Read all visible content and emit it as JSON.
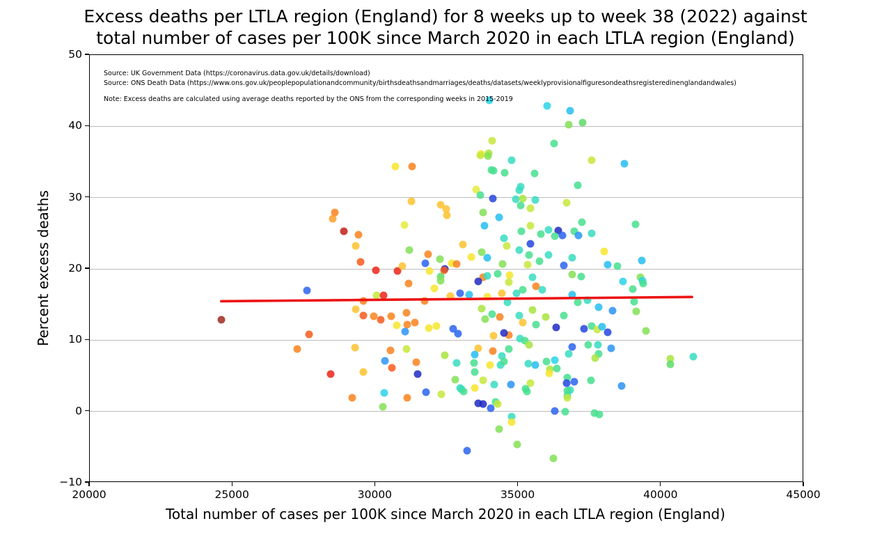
{
  "figure": {
    "title_line1": "Excess deaths per LTLA region (England) for 8 weeks up to week 38 (2022) against",
    "title_line2": "total number of cases per 100K since March 2020 in each LTLA region (England)",
    "source_line1": "Source: UK Government Data (https://coronavirus.data.gov.uk/details/download)",
    "source_line2": "Source: ONS Death Data (https://www.ons.gov.uk/peoplepopulationandcommunity/birthsdeathsandmarriages/deaths/datasets/weeklyprovisionalfiguresondeathsregisteredinenglandandwales)",
    "note": "Note: Excess deaths are calculated using average deaths reported by the ONS from the corresponding weeks in 2015-2019"
  },
  "chart_data": {
    "type": "scatter",
    "title": "Excess deaths per LTLA region (England) for 8 weeks up to week 38 (2022) against total number of cases per 100K since March 2020 in each LTLA region (England)",
    "xlabel": "Total number of cases per 100K since March 2020 in each LTLA region (England)",
    "ylabel": "Percent excess deaths",
    "xlim": [
      20000,
      45000
    ],
    "ylim": [
      -10,
      50
    ],
    "x_ticks": [
      20000,
      25000,
      30000,
      35000,
      40000,
      45000
    ],
    "y_ticks": [
      -10,
      0,
      10,
      20,
      30,
      40,
      50
    ],
    "grid": "horizontal",
    "grid_color": "#bcbcbc",
    "legend": "none",
    "trend_line": {
      "x": [
        24600,
        41130
      ],
      "y": [
        15.35,
        15.95
      ],
      "color": "#ec1313"
    },
    "point_colors": {
      "darkred": "#9f2b1e",
      "firebrick": "#c41f1a",
      "red": "#ee2419",
      "orangered": "#f75a1c",
      "orange": "#f9831d",
      "lightorange": "#fda029",
      "gold": "#fdc22e",
      "yellow": "#f7e52b",
      "limeyellow": "#e5ec3c",
      "greenyellow": "#c5e83b",
      "yellowgreen": "#a8e43e",
      "lightgreen": "#83e056",
      "green": "#5eda68",
      "springgreen": "#46df8e",
      "turquoise": "#37dcc1",
      "cyan": "#29d3e7",
      "deepskyblue": "#26bdf1",
      "dodgerblue": "#2b94f5",
      "blue": "#2c63ee",
      "royalblue": "#2447de",
      "navy": "#1e2ac2"
    },
    "points": [
      [
        30690,
        34.4,
        "yellow"
      ],
      [
        31275,
        34.4,
        "orange"
      ],
      [
        28575,
        27.9,
        "orange"
      ],
      [
        28500,
        27.0,
        "lightorange"
      ],
      [
        28900,
        25.3,
        "firebrick"
      ],
      [
        29415,
        24.8,
        "orange"
      ],
      [
        29310,
        23.2,
        "gold"
      ],
      [
        29480,
        21.0,
        "orangered"
      ],
      [
        31250,
        29.5,
        "gold"
      ],
      [
        31005,
        26.2,
        "limeyellow"
      ],
      [
        31185,
        22.6,
        "lightgreen"
      ],
      [
        31835,
        22.1,
        "orange"
      ],
      [
        32250,
        21.4,
        "lightgreen"
      ],
      [
        31745,
        20.8,
        "blue"
      ],
      [
        32430,
        20.0,
        "navy"
      ],
      [
        32410,
        19.8,
        "orangered"
      ],
      [
        32670,
        20.8,
        "yellow"
      ],
      [
        32850,
        20.7,
        "orange"
      ],
      [
        30015,
        19.8,
        "red"
      ],
      [
        30780,
        19.7,
        "red"
      ],
      [
        30940,
        20.4,
        "gold"
      ],
      [
        31885,
        19.7,
        "yellow"
      ],
      [
        32290,
        18.9,
        "green"
      ],
      [
        32280,
        29.0,
        "gold"
      ],
      [
        32475,
        28.4,
        "gold"
      ],
      [
        32500,
        27.5,
        "gold"
      ],
      [
        33990,
        43.6,
        "cyan"
      ],
      [
        36000,
        42.9,
        "cyan"
      ],
      [
        36820,
        42.2,
        "deepskyblue"
      ],
      [
        36775,
        40.2,
        "lightgreen"
      ],
      [
        37255,
        40.5,
        "green"
      ],
      [
        34095,
        38.0,
        "greenyellow"
      ],
      [
        33695,
        36.1,
        "yellow"
      ],
      [
        33965,
        36.2,
        "yellowgreen"
      ],
      [
        36245,
        37.6,
        "springgreen"
      ],
      [
        34770,
        35.2,
        "turquoise"
      ],
      [
        34125,
        33.8,
        "springgreen"
      ],
      [
        34525,
        33.5,
        "springgreen"
      ],
      [
        37570,
        35.2,
        "greenyellow"
      ],
      [
        38715,
        34.8,
        "deepskyblue"
      ],
      [
        35580,
        33.4,
        "springgreen"
      ],
      [
        37090,
        31.7,
        "springgreen"
      ],
      [
        33530,
        31.1,
        "limeyellow"
      ],
      [
        33680,
        35.9,
        "greenyellow"
      ],
      [
        33940,
        35.8,
        "lightgreen"
      ],
      [
        34070,
        33.9,
        "springgreen"
      ],
      [
        33680,
        30.4,
        "springgreen"
      ],
      [
        35075,
        31.5,
        "turquoise"
      ],
      [
        35035,
        31.0,
        "turquoise"
      ],
      [
        34110,
        29.9,
        "royalblue"
      ],
      [
        34905,
        29.8,
        "turquoise"
      ],
      [
        35605,
        29.7,
        "turquoise"
      ],
      [
        35155,
        29.9,
        "yellowgreen"
      ],
      [
        35085,
        28.9,
        "springgreen"
      ],
      [
        35425,
        28.5,
        "greenyellow"
      ],
      [
        36690,
        29.3,
        "greenyellow"
      ],
      [
        33760,
        27.9,
        "lightgreen"
      ],
      [
        34330,
        27.2,
        "deepskyblue"
      ],
      [
        33815,
        26.1,
        "deepskyblue"
      ],
      [
        37220,
        26.5,
        "springgreen"
      ],
      [
        39100,
        26.3,
        "springgreen"
      ],
      [
        36405,
        25.4,
        "navy"
      ],
      [
        36545,
        24.7,
        "blue"
      ],
      [
        35100,
        25.3,
        "springgreen"
      ],
      [
        35420,
        26.1,
        "greenyellow"
      ],
      [
        35790,
        24.9,
        "springgreen"
      ],
      [
        36280,
        24.6,
        "springgreen"
      ],
      [
        36065,
        25.5,
        "turquoise"
      ],
      [
        36960,
        25.3,
        "springgreen"
      ],
      [
        37115,
        24.7,
        "dodgerblue"
      ],
      [
        37575,
        25.0,
        "turquoise"
      ],
      [
        34490,
        24.3,
        "turquoise"
      ],
      [
        34605,
        23.2,
        "greenyellow"
      ],
      [
        33070,
        23.4,
        "gold"
      ],
      [
        35420,
        23.5,
        "royalblue"
      ],
      [
        35045,
        22.6,
        "turquoise"
      ],
      [
        38000,
        22.4,
        "yellow"
      ],
      [
        33355,
        21.7,
        "yellow"
      ],
      [
        33720,
        22.3,
        "lightgreen"
      ],
      [
        33905,
        21.6,
        "deepskyblue"
      ],
      [
        35385,
        22.0,
        "springgreen"
      ],
      [
        36050,
        22.0,
        "turquoise"
      ],
      [
        35750,
        21.1,
        "springgreen"
      ],
      [
        36895,
        21.6,
        "turquoise"
      ],
      [
        39315,
        21.2,
        "deepskyblue"
      ],
      [
        34450,
        20.7,
        "lightgreen"
      ],
      [
        35330,
        20.6,
        "greenyellow"
      ],
      [
        36600,
        20.5,
        "blue"
      ],
      [
        38130,
        20.6,
        "deepskyblue"
      ],
      [
        38465,
        20.4,
        "springgreen"
      ],
      [
        34290,
        19.3,
        "springgreen"
      ],
      [
        34695,
        19.1,
        "yellow"
      ],
      [
        33760,
        18.8,
        "orange"
      ],
      [
        33600,
        18.2,
        "navy"
      ],
      [
        35505,
        18.8,
        "turquoise"
      ],
      [
        36885,
        19.2,
        "lightgreen"
      ],
      [
        37210,
        18.9,
        "springgreen"
      ],
      [
        39285,
        18.8,
        "lightgreen"
      ],
      [
        33920,
        19.0,
        "turquoise"
      ],
      [
        27600,
        17.0,
        "blue"
      ],
      [
        24600,
        12.9,
        "darkred"
      ],
      [
        27670,
        10.8,
        "orangered"
      ],
      [
        27270,
        8.8,
        "orange"
      ],
      [
        28430,
        5.2,
        "red"
      ],
      [
        29195,
        1.9,
        "orange"
      ],
      [
        29570,
        15.5,
        "orange"
      ],
      [
        30030,
        16.3,
        "greenyellow"
      ],
      [
        30290,
        16.3,
        "red"
      ],
      [
        29315,
        14.3,
        "gold"
      ],
      [
        29575,
        13.5,
        "orangered"
      ],
      [
        29950,
        13.4,
        "orange"
      ],
      [
        30180,
        12.9,
        "orangered"
      ],
      [
        30560,
        13.4,
        "orange"
      ],
      [
        30740,
        12.1,
        "yellow"
      ],
      [
        31085,
        13.8,
        "orange"
      ],
      [
        31110,
        12.2,
        "orange"
      ],
      [
        31030,
        11.2,
        "dodgerblue"
      ],
      [
        31370,
        12.5,
        "orange"
      ],
      [
        31165,
        17.9,
        "orange"
      ],
      [
        32060,
        17.3,
        "yellow"
      ],
      [
        32275,
        18.3,
        "lightgreen"
      ],
      [
        31875,
        11.7,
        "yellow"
      ],
      [
        32125,
        12.0,
        "yellow"
      ],
      [
        31730,
        15.5,
        "orange"
      ],
      [
        32620,
        16.2,
        "gold"
      ],
      [
        32725,
        11.6,
        "blue"
      ],
      [
        32895,
        10.9,
        "blue"
      ],
      [
        32965,
        16.6,
        "blue"
      ],
      [
        33280,
        16.4,
        "deepskyblue"
      ],
      [
        29290,
        9.0,
        "gold"
      ],
      [
        30520,
        8.6,
        "orange"
      ],
      [
        31085,
        8.8,
        "greenyellow"
      ],
      [
        30330,
        7.1,
        "dodgerblue"
      ],
      [
        30575,
        6.1,
        "orangered"
      ],
      [
        31435,
        6.9,
        "orange"
      ],
      [
        29575,
        5.5,
        "gold"
      ],
      [
        31485,
        5.2,
        "navy"
      ],
      [
        32435,
        7.9,
        "yellowgreen"
      ],
      [
        32850,
        6.8,
        "turquoise"
      ],
      [
        30315,
        2.6,
        "cyan"
      ],
      [
        31110,
        1.9,
        "orange"
      ],
      [
        31760,
        2.7,
        "blue"
      ],
      [
        32315,
        2.4,
        "greenyellow"
      ],
      [
        32785,
        4.5,
        "lightgreen"
      ],
      [
        32965,
        3.3,
        "turquoise"
      ],
      [
        30260,
        0.7,
        "lightgreen"
      ],
      [
        33925,
        16.1,
        "yellow"
      ],
      [
        34415,
        16.6,
        "gold"
      ],
      [
        34660,
        18.1,
        "greenyellow"
      ],
      [
        34945,
        16.6,
        "turquoise"
      ],
      [
        35145,
        17.1,
        "springgreen"
      ],
      [
        35610,
        17.6,
        "orange"
      ],
      [
        35835,
        17.1,
        "turquoise"
      ],
      [
        34620,
        15.3,
        "turquoise"
      ],
      [
        33720,
        14.4,
        "yellowgreen"
      ],
      [
        34085,
        13.6,
        "springgreen"
      ],
      [
        33840,
        13.0,
        "lightgreen"
      ],
      [
        34355,
        13.3,
        "orange"
      ],
      [
        35035,
        13.5,
        "turquoise"
      ],
      [
        35145,
        12.5,
        "gold"
      ],
      [
        35505,
        14.2,
        "yellowgreen"
      ],
      [
        35625,
        12.2,
        "springgreen"
      ],
      [
        35955,
        13.3,
        "yellowgreen"
      ],
      [
        36600,
        13.5,
        "springgreen"
      ],
      [
        36885,
        16.4,
        "deepskyblue"
      ],
      [
        37090,
        15.3,
        "springgreen"
      ],
      [
        37415,
        15.6,
        "turquoise"
      ],
      [
        37820,
        14.6,
        "deepskyblue"
      ],
      [
        38310,
        14.1,
        "dodgerblue"
      ],
      [
        39000,
        17.2,
        "springgreen"
      ],
      [
        39055,
        15.4,
        "springgreen"
      ],
      [
        39135,
        14.0,
        "lightgreen"
      ],
      [
        38660,
        18.2,
        "cyan"
      ],
      [
        39335,
        18.3,
        "cyan"
      ],
      [
        39365,
        17.9,
        "springgreen"
      ],
      [
        36320,
        11.8,
        "navy"
      ],
      [
        37295,
        11.6,
        "royalblue"
      ],
      [
        37575,
        12.0,
        "springgreen"
      ],
      [
        37760,
        11.5,
        "greenyellow"
      ],
      [
        37945,
        11.9,
        "deepskyblue"
      ],
      [
        38135,
        11.1,
        "royalblue"
      ],
      [
        34660,
        10.7,
        "orange"
      ],
      [
        34130,
        10.6,
        "gold"
      ],
      [
        34495,
        11.0,
        "navy"
      ],
      [
        35060,
        10.2,
        "turquoise"
      ],
      [
        35225,
        9.9,
        "springgreen"
      ],
      [
        35385,
        9.3,
        "yellowgreen"
      ],
      [
        39470,
        11.3,
        "lightgreen"
      ],
      [
        33600,
        8.9,
        "gold"
      ],
      [
        34110,
        8.5,
        "orange"
      ],
      [
        33475,
        8.0,
        "deepskyblue"
      ],
      [
        34415,
        7.8,
        "turquoise"
      ],
      [
        34660,
        8.8,
        "springgreen"
      ],
      [
        36885,
        9.1,
        "blue"
      ],
      [
        36765,
        8.1,
        "turquoise"
      ],
      [
        37455,
        9.3,
        "springgreen"
      ],
      [
        37780,
        9.3,
        "turquoise"
      ],
      [
        37820,
        8.1,
        "springgreen"
      ],
      [
        37700,
        7.5,
        "yellowgreen"
      ],
      [
        38245,
        8.9,
        "dodgerblue"
      ],
      [
        33450,
        6.8,
        "springgreen"
      ],
      [
        33475,
        5.5,
        "springgreen"
      ],
      [
        34005,
        6.5,
        "yellow"
      ],
      [
        34370,
        6.5,
        "turquoise"
      ],
      [
        34490,
        7.0,
        "springgreen"
      ],
      [
        35345,
        6.7,
        "turquoise"
      ],
      [
        35590,
        6.5,
        "deepskyblue"
      ],
      [
        35995,
        7.0,
        "springgreen"
      ],
      [
        36280,
        7.2,
        "cyan"
      ],
      [
        36115,
        5.9,
        "yellowgreen"
      ],
      [
        36360,
        6.0,
        "springgreen"
      ],
      [
        36075,
        5.3,
        "yellow"
      ],
      [
        33760,
        4.4,
        "greenyellow"
      ],
      [
        33475,
        3.3,
        "yellow"
      ],
      [
        34165,
        3.8,
        "turquoise"
      ],
      [
        34735,
        3.8,
        "dodgerblue"
      ],
      [
        35425,
        4.0,
        "greenyellow"
      ],
      [
        35260,
        3.2,
        "springgreen"
      ],
      [
        36805,
        3.0,
        "turquoise"
      ],
      [
        36725,
        4.8,
        "springgreen"
      ],
      [
        36685,
        4.0,
        "royalblue"
      ],
      [
        36965,
        4.2,
        "blue"
      ],
      [
        37535,
        4.4,
        "springgreen"
      ],
      [
        38615,
        3.6,
        "dodgerblue"
      ],
      [
        36725,
        2.2,
        "turquoise"
      ],
      [
        33600,
        1.1,
        "navy"
      ],
      [
        33760,
        1.0,
        "navy"
      ],
      [
        34045,
        0.5,
        "blue"
      ],
      [
        34205,
        1.3,
        "springgreen"
      ],
      [
        36280,
        0.1,
        "blue"
      ],
      [
        36645,
        0.0,
        "springgreen"
      ],
      [
        37660,
        -0.2,
        "springgreen"
      ],
      [
        37845,
        -0.4,
        "springgreen"
      ],
      [
        34760,
        -0.7,
        "turquoise"
      ],
      [
        34760,
        -1.5,
        "yellow"
      ],
      [
        34330,
        -2.5,
        "lightgreen"
      ],
      [
        34960,
        -4.6,
        "lightgreen"
      ],
      [
        33215,
        -5.5,
        "blue"
      ],
      [
        36235,
        -6.6,
        "lightgreen"
      ],
      [
        40325,
        7.4,
        "yellowgreen"
      ],
      [
        40325,
        6.6,
        "green"
      ],
      [
        41115,
        7.7,
        "turquoise"
      ],
      [
        33000,
        3.1,
        "turquoise"
      ],
      [
        33085,
        2.8,
        "springgreen"
      ],
      [
        34280,
        1.0,
        "greenyellow"
      ],
      [
        35305,
        2.8,
        "springgreen"
      ],
      [
        36710,
        2.9,
        "springgreen"
      ],
      [
        36710,
        1.9,
        "greenyellow"
      ]
    ]
  }
}
